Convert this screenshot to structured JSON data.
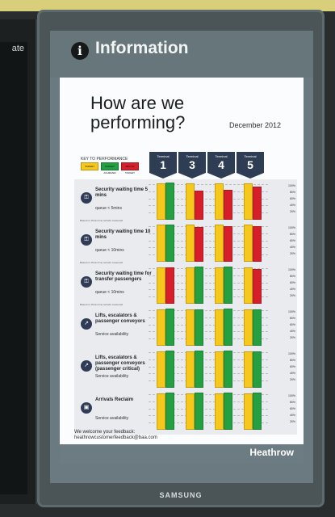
{
  "left_screen": {
    "fragment": "ate"
  },
  "header": {
    "title": "Information"
  },
  "poster": {
    "headline": "How are we performing?",
    "month": "December 2012",
    "key_title": "KEY TO PERFORMANCE",
    "key": [
      {
        "label": "TARGET",
        "color": "#f6c81b"
      },
      {
        "label": "TARGET ACHIEVED",
        "color": "#24a043"
      },
      {
        "label": "BELOW TARGET",
        "color": "#d61f2a"
      }
    ],
    "terminals": [
      {
        "label": "Terminal",
        "number": "1"
      },
      {
        "label": "Terminal",
        "number": "3"
      },
      {
        "label": "Terminal",
        "number": "4"
      },
      {
        "label": "Terminal",
        "number": "5"
      }
    ],
    "percent_ticks": [
      "100%",
      "80%",
      "60%",
      "40%",
      "20%"
    ],
    "rows": [
      {
        "title": "Security waiting time 5 mins",
        "subtitle": "queue < 5mins",
        "note": "Based on 15min time periods measured",
        "icon": "security-icon",
        "bars": [
          {
            "target": 0.98,
            "actual": 0.99,
            "actual_color": "#24a043"
          },
          {
            "target": 0.98,
            "actual": 0.78,
            "actual_color": "#d61f2a"
          },
          {
            "target": 0.98,
            "actual": 0.79,
            "actual_color": "#d61f2a"
          },
          {
            "target": 0.98,
            "actual": 0.88,
            "actual_color": "#d61f2a"
          }
        ]
      },
      {
        "title": "Security waiting time 10 mins",
        "subtitle": "queue < 10mins",
        "note": "Based on 15min time periods measured",
        "icon": "security-icon",
        "bars": [
          {
            "target": 0.99,
            "actual": 0.99,
            "actual_color": "#24a043"
          },
          {
            "target": 0.99,
            "actual": 0.94,
            "actual_color": "#d61f2a"
          },
          {
            "target": 0.99,
            "actual": 0.96,
            "actual_color": "#d61f2a"
          },
          {
            "target": 0.99,
            "actual": 0.95,
            "actual_color": "#d61f2a"
          }
        ]
      },
      {
        "title": "Security waiting time for transfer passengers",
        "subtitle": "queue < 10mins",
        "note": "Based on 15min time periods measured",
        "icon": "security-icon",
        "bars": [
          {
            "target": 0.98,
            "actual": 0.97,
            "actual_color": "#d61f2a"
          },
          {
            "target": 0.98,
            "actual": 0.99,
            "actual_color": "#24a043"
          },
          {
            "target": 0.98,
            "actual": 0.99,
            "actual_color": "#24a043"
          },
          {
            "target": 0.98,
            "actual": 0.93,
            "actual_color": "#d61f2a"
          }
        ]
      },
      {
        "title": "Lifts, escalators & passenger conveyors",
        "subtitle": "Service availability",
        "note": "",
        "icon": "escalator-icon",
        "bars": [
          {
            "target": 0.97,
            "actual": 0.99,
            "actual_color": "#24a043"
          },
          {
            "target": 0.97,
            "actual": 0.98,
            "actual_color": "#24a043"
          },
          {
            "target": 0.97,
            "actual": 0.99,
            "actual_color": "#24a043"
          },
          {
            "target": 0.97,
            "actual": 0.98,
            "actual_color": "#24a043"
          }
        ]
      },
      {
        "title": "Lifts, escalators & passenger conveyors (passenger critical)",
        "subtitle": "Service availability",
        "note": "",
        "icon": "escalator-icon",
        "bars": [
          {
            "target": 0.97,
            "actual": 0.99,
            "actual_color": "#24a043"
          },
          {
            "target": 0.97,
            "actual": 0.99,
            "actual_color": "#24a043"
          },
          {
            "target": 0.97,
            "actual": 0.99,
            "actual_color": "#24a043"
          },
          {
            "target": 0.97,
            "actual": 0.98,
            "actual_color": "#24a043"
          }
        ]
      },
      {
        "title": "Arrivals Reclaim",
        "subtitle": "Service availability",
        "note": "",
        "icon": "baggage-icon",
        "bars": [
          {
            "target": 0.98,
            "actual": 0.99,
            "actual_color": "#24a043"
          },
          {
            "target": 0.98,
            "actual": 0.99,
            "actual_color": "#24a043"
          },
          {
            "target": 0.98,
            "actual": 0.99,
            "actual_color": "#24a043"
          },
          {
            "target": 0.98,
            "actual": 0.99,
            "actual_color": "#24a043"
          }
        ]
      }
    ],
    "feedback_line1": "We welcome your feedback:",
    "feedback_line2": "heathrowcustomerfeedback@baa.com",
    "brand": "Heathrow"
  },
  "monitor": {
    "brand": "SAMSUNG"
  }
}
